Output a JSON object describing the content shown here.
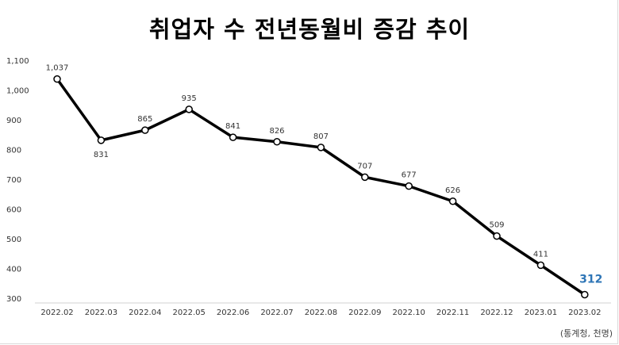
{
  "chart_data": {
    "type": "line",
    "title": "취업자 수 전년동월비 증감 추이",
    "source": "(통계청, 천명)",
    "categories": [
      "2022.02",
      "2022.03",
      "2022.04",
      "2022.05",
      "2022.06",
      "2022.07",
      "2022.08",
      "2022.09",
      "2022.10",
      "2022.11",
      "2022.12",
      "2023.01",
      "2023.02"
    ],
    "series": [
      {
        "values": [
          1037,
          831,
          865,
          935,
          841,
          826,
          807,
          707,
          677,
          626,
          509,
          411,
          312
        ],
        "labels": [
          "1,037",
          "831",
          "865",
          "935",
          "841",
          "826",
          "807",
          "707",
          "677",
          "626",
          "509",
          "411",
          "312"
        ]
      }
    ],
    "yticks": [
      "300",
      "400",
      "500",
      "600",
      "700",
      "800",
      "900",
      "1,000",
      "1,100"
    ],
    "ylim": [
      300,
      1100
    ],
    "grid": false,
    "legend": "none",
    "line_color": "#000000",
    "highlight_color": "#2e75b6"
  }
}
